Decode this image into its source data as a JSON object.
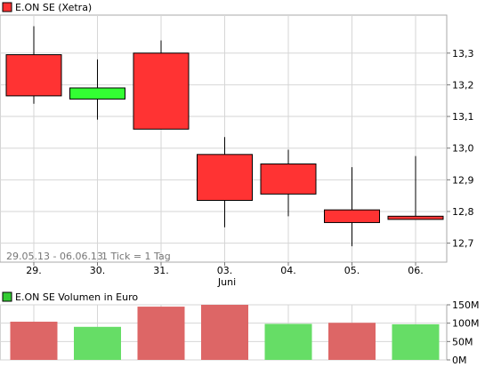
{
  "charts": {
    "price": {
      "legend_label": "E.ON SE (Xetra)",
      "legend_color": "#ff3333",
      "range_label": "29.05.13 - 06.06.13",
      "tick_label": "1 Tick = 1 Tag",
      "month_label": "Juni"
    },
    "volume": {
      "legend_label": "E.ON SE Volumen in Euro",
      "legend_color": "#33cc33"
    }
  },
  "chart_data": [
    {
      "type": "candlestick",
      "title": "E.ON SE (Xetra)",
      "categories": [
        "29.",
        "30.",
        "31.",
        "03.",
        "04.",
        "05.",
        "06."
      ],
      "ylim": [
        12.64,
        13.42
      ],
      "yticks": [
        "12,7",
        "12,8",
        "12,9",
        "13,0",
        "13,1",
        "13,2",
        "13,3"
      ],
      "ytick_values": [
        12.7,
        12.8,
        12.9,
        13.0,
        13.1,
        13.2,
        13.3
      ],
      "grid": true,
      "up_color": "#33ff33",
      "down_color": "#ff3333",
      "candles": [
        {
          "open": 13.295,
          "high": 13.385,
          "low": 13.14,
          "close": 13.165
        },
        {
          "open": 13.155,
          "high": 13.28,
          "low": 13.09,
          "close": 13.19
        },
        {
          "open": 13.3,
          "high": 13.34,
          "low": 13.06,
          "close": 13.06
        },
        {
          "open": 12.98,
          "high": 13.035,
          "low": 12.75,
          "close": 12.835
        },
        {
          "open": 12.95,
          "high": 12.995,
          "low": 12.785,
          "close": 12.855
        },
        {
          "open": 12.805,
          "high": 12.94,
          "low": 12.69,
          "close": 12.765
        },
        {
          "open": 12.785,
          "high": 12.975,
          "low": 12.775,
          "close": 12.775
        }
      ]
    },
    {
      "type": "bar",
      "title": "E.ON SE Volumen in Euro",
      "categories": [
        "29.",
        "30.",
        "31.",
        "03.",
        "04.",
        "05.",
        "06."
      ],
      "ylim": [
        0,
        150
      ],
      "yticks": [
        "0M",
        "50M",
        "100M",
        "150M"
      ],
      "ytick_values": [
        0,
        50,
        100,
        150
      ],
      "values": [
        104,
        90,
        145,
        151,
        98,
        101,
        97
      ],
      "bar_colors": [
        "#dd6666",
        "#66dd66",
        "#dd6666",
        "#dd6666",
        "#66dd66",
        "#dd6666",
        "#66dd66"
      ]
    }
  ]
}
